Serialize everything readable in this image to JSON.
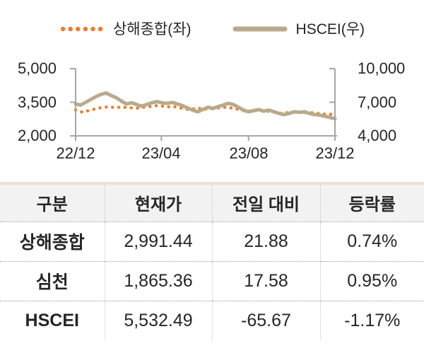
{
  "colors": {
    "sse_orange": "#ED7D31",
    "hscei_tan": "#B8AB8C",
    "axis_gray": "#A6A6A6",
    "text": "#262626",
    "table_header_bg": "#F2F2F2",
    "table_top_border": "#EAE2CF"
  },
  "legend": {
    "items": [
      {
        "label": "상해종합(좌)",
        "style": "dotted"
      },
      {
        "label": "HSCEI(우)",
        "style": "solid"
      }
    ]
  },
  "chart_data": {
    "type": "line",
    "x_ticks": [
      "22/12",
      "23/04",
      "23/08",
      "23/12"
    ],
    "left_axis": {
      "ticks": [
        "5,000",
        "3,500",
        "2,000"
      ],
      "min": 2000,
      "max": 5000
    },
    "right_axis": {
      "ticks": [
        "10,000",
        "7,000",
        "4,000"
      ],
      "min": 4000,
      "max": 10000
    },
    "series": [
      {
        "name": "상해종합(좌)",
        "axis": "left",
        "style": "dotted",
        "color": "#ED7D31",
        "values": [
          3150,
          3065,
          3090,
          3155,
          3210,
          3260,
          3285,
          3270,
          3290,
          3255,
          3280,
          3250,
          3230,
          3265,
          3290,
          3320,
          3350,
          3330,
          3290,
          3310,
          3280,
          3220,
          3180,
          3200,
          3230,
          3210,
          3190,
          3210,
          3240,
          3280,
          3260,
          3230,
          3180,
          3120,
          3100,
          3130,
          3110,
          3120,
          3100,
          3060,
          3000,
          3020,
          3040,
          3070,
          3050,
          3030,
          3040,
          3020,
          2990,
          2970,
          2960,
          2991
        ]
      },
      {
        "name": "HSCEI(우)",
        "axis": "right",
        "style": "solid",
        "color": "#B8AB8C",
        "values": [
          6850,
          6750,
          7000,
          7250,
          7500,
          7700,
          7820,
          7600,
          7400,
          7100,
          6850,
          6950,
          6800,
          6650,
          6800,
          6950,
          7050,
          6950,
          6900,
          6980,
          6850,
          6700,
          6500,
          6300,
          6150,
          6350,
          6550,
          6450,
          6600,
          6750,
          6900,
          6800,
          6550,
          6300,
          6150,
          6250,
          6350,
          6200,
          6300,
          6150,
          6000,
          5900,
          6000,
          6150,
          6100,
          6150,
          6000,
          5900,
          5850,
          5750,
          5650,
          5530
        ]
      }
    ]
  },
  "table": {
    "headers": [
      "구분",
      "현재가",
      "전일 대비",
      "등락률"
    ],
    "rows": [
      [
        "상해종합",
        "2,991.44",
        "21.88",
        "0.74%"
      ],
      [
        "심천",
        "1,865.36",
        "17.58",
        "0.95%"
      ],
      [
        "HSCEI",
        "5,532.49",
        "-65.67",
        "-1.17%"
      ]
    ]
  }
}
